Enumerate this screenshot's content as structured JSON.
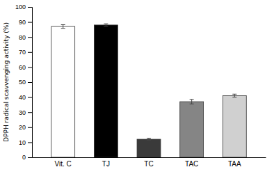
{
  "chart_data": {
    "type": "bar",
    "categories": [
      "Vit. C",
      "TJ",
      "TC",
      "TAC",
      "TAA"
    ],
    "values": [
      87.0,
      88.0,
      12.0,
      37.0,
      41.0
    ],
    "errors": [
      1.2,
      0.8,
      0.7,
      1.5,
      1.0
    ],
    "colors": [
      "white",
      "black",
      "#3a3a3a",
      "#858585",
      "#d0d0d0"
    ],
    "ylabel": "DPPH radical scavvenging activity (%)",
    "ylim": [
      0,
      100
    ],
    "yticks": [
      0,
      10,
      20,
      30,
      40,
      50,
      60,
      70,
      80,
      90,
      100
    ],
    "grid": false
  }
}
